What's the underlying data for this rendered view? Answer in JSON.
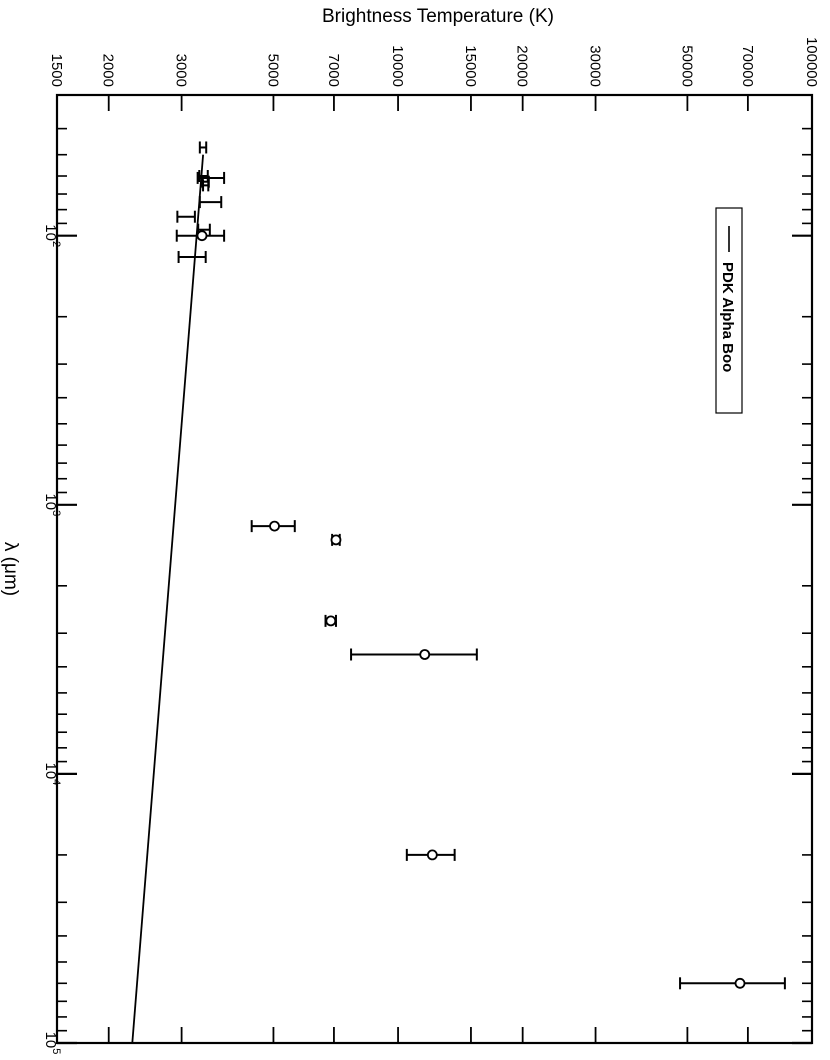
{
  "chart_data": {
    "type": "scatter",
    "orientation": "rotated-90-clockwise",
    "x_axis": {
      "label": "λ (μm)",
      "scale": "log",
      "range": [
        30,
        100000
      ],
      "major_ticks": [
        {
          "value": 100,
          "label": "10",
          "exponent": "2"
        },
        {
          "value": 1000,
          "label": "10",
          "exponent": "3"
        },
        {
          "value": 10000,
          "label": "10",
          "exponent": "4"
        },
        {
          "value": 100000,
          "label": "10",
          "exponent": "5"
        }
      ]
    },
    "y_axis": {
      "label": "Brightness Temperature (K)",
      "scale": "log",
      "range": [
        1500,
        100000
      ],
      "ticks": [
        1500,
        2000,
        3000,
        5000,
        7000,
        10000,
        15000,
        20000,
        30000,
        50000,
        70000,
        100000
      ],
      "tick_labels": [
        "1500",
        "2000",
        "3000",
        "5000",
        "7000",
        "10000",
        "15000",
        "20000",
        "30000",
        "50000",
        "70000",
        "100000"
      ]
    },
    "legend": {
      "placement": "upper-right",
      "entries": [
        {
          "label": "PDK Alpha Boo",
          "style": "solid-line"
        }
      ]
    },
    "series": [
      {
        "name": "PDK Alpha Boo",
        "type": "line",
        "x": [
          50,
          100000
        ],
        "y": [
          3380,
          2280
        ]
      },
      {
        "type": "errorbar",
        "points": [
          {
            "x": 47,
            "y": 3380,
            "err": 60,
            "marker": "none"
          },
          {
            "x": 60,
            "y": 3390,
            "err": 80,
            "marker": "none"
          },
          {
            "x": 61,
            "y": 3540,
            "err": 260,
            "marker": "none"
          },
          {
            "x": 63,
            "y": 3430,
            "err": 60,
            "marker": "none"
          },
          {
            "x": 65,
            "y": 3430,
            "err": 50,
            "marker": "none"
          },
          {
            "x": 75,
            "y": 3530,
            "err": 210,
            "marker": "none"
          },
          {
            "x": 85,
            "y": 3080,
            "err": 150,
            "marker": "none"
          },
          {
            "x": 95,
            "y": 3400,
            "err": 110,
            "marker": "none"
          },
          {
            "x": 100,
            "y": 3360,
            "err": 440,
            "marker": "circle"
          },
          {
            "x": 120,
            "y": 3190,
            "err": 240,
            "marker": "none"
          },
          {
            "x": 1200,
            "y": 5030,
            "err": 600,
            "marker": "circle"
          },
          {
            "x": 1350,
            "y": 7080,
            "err": 150,
            "marker": "circle"
          },
          {
            "x": 2700,
            "y": 6880,
            "err": 200,
            "marker": "circle"
          },
          {
            "x": 3600,
            "y": 11600,
            "err": 3900,
            "marker": "circle"
          },
          {
            "x": 20000,
            "y": 12100,
            "err": 1600,
            "marker": "circle"
          },
          {
            "x": 60000,
            "y": 67000,
            "err": 19000,
            "marker": "circle"
          }
        ]
      }
    ]
  }
}
